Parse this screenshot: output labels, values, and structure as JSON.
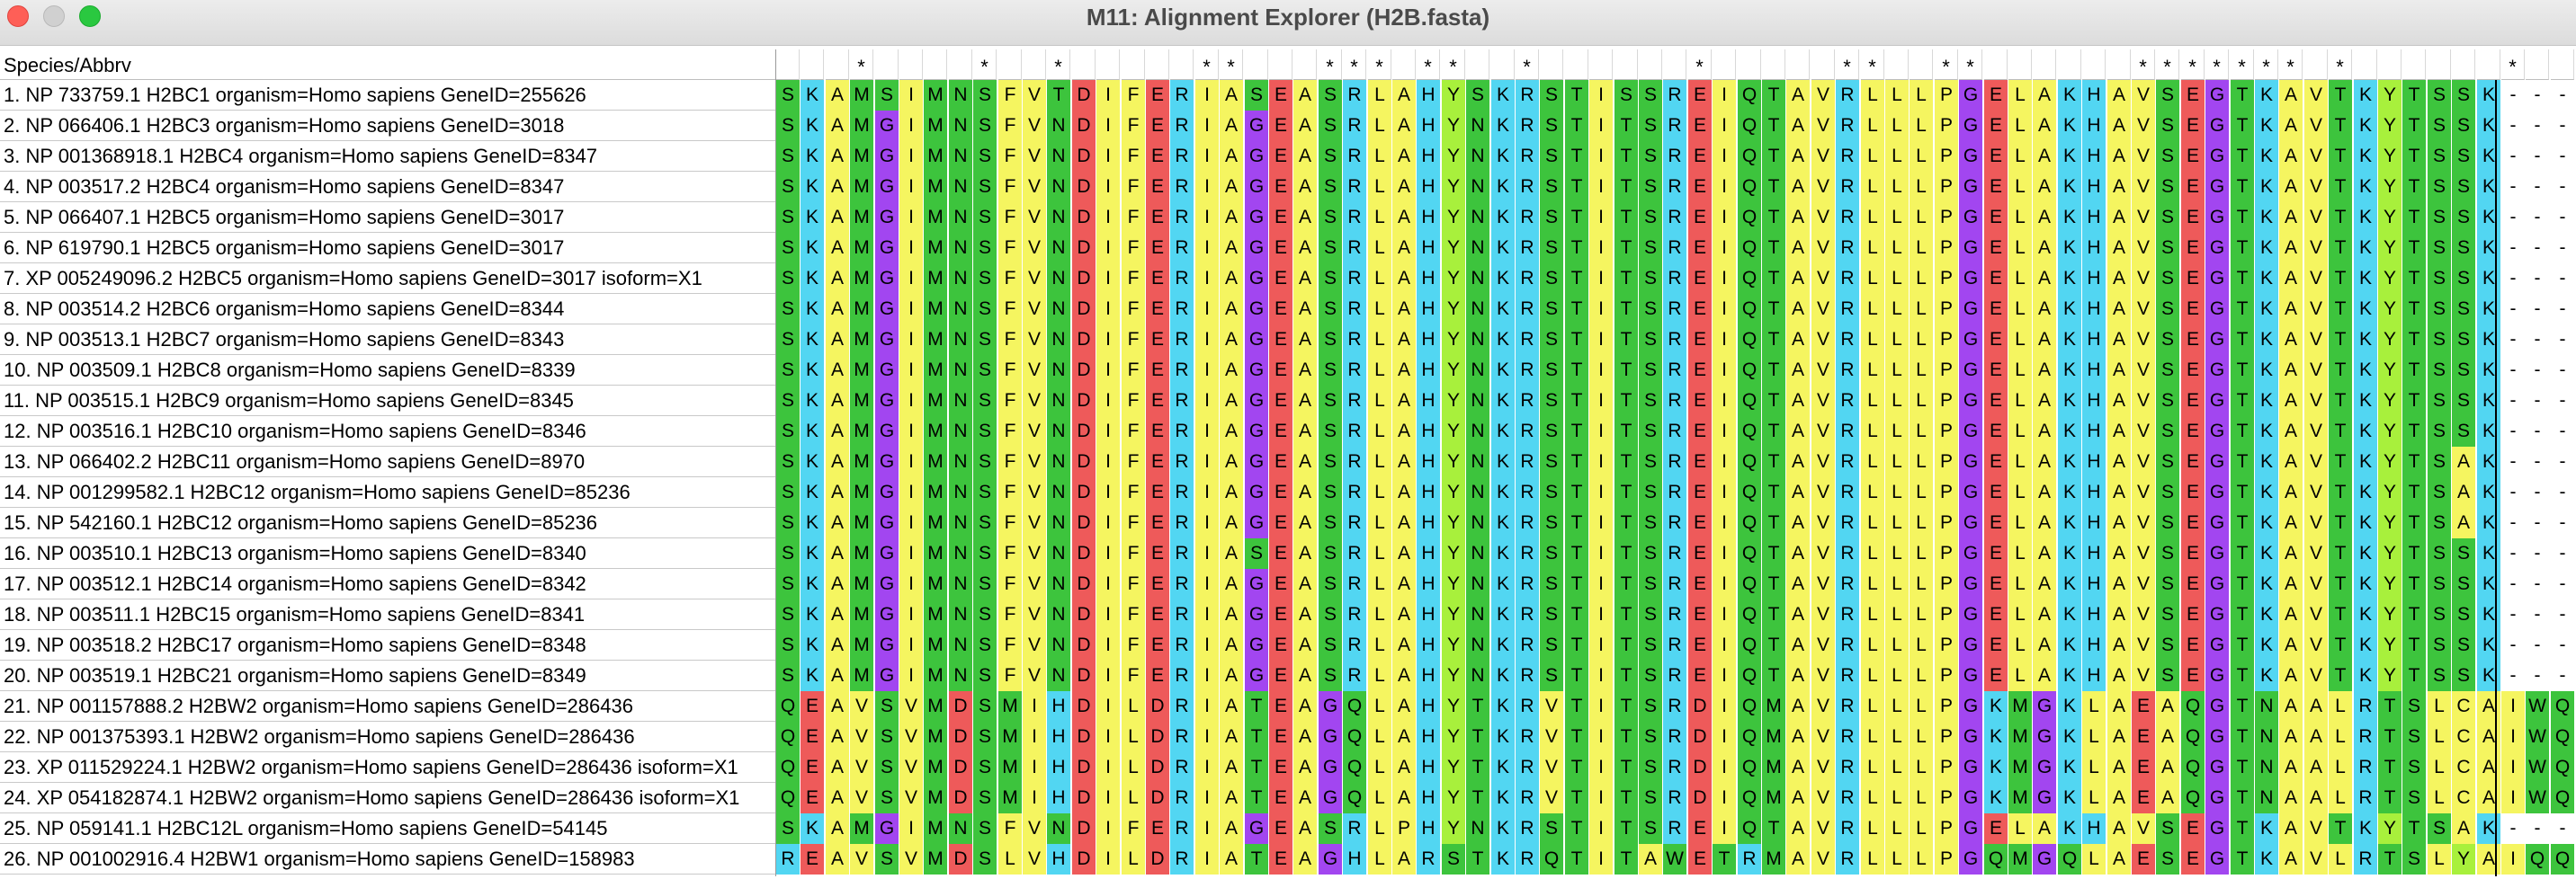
{
  "window": {
    "title": "M11: Alignment Explorer (H2B.fasta)"
  },
  "grid": {
    "header_label": "Species/Abbrv"
  },
  "colors": {
    "G": "#a246f0",
    "A": "#f5f560",
    "V": "#f5f560",
    "L": "#f5f560",
    "I": "#f5f560",
    "P": "#f5f560",
    "M": "#3dc43d",
    "F": "#f5f560",
    "W": "#3dc43d",
    "C": "#f5f560",
    "S": "#3dc43d",
    "T": "#3dc43d",
    "Y": "#a8f03c",
    "N": "#3dc43d",
    "Q": "#3dc43d",
    "D": "#ee5a5a",
    "E": "#ee5a5a",
    "K": "#52d6f2",
    "R": "#52d6f2",
    "H": "#52d6f2",
    "-": "#ffffff"
  },
  "conservation": "   *    *  *     **   *** **  *      *     **  **      ******* *      *  *   **  *                  *",
  "sequences": [
    {
      "name": "1. NP 733759.1 H2BC1 organism=Homo sapiens GeneID=255626",
      "seq": "SKAMSIMNSFVTDIFERIASEASRLAHYSKRSTISSREIQTAVRLLLPGELAKHAVSEGTKAVTKYTSSK---"
    },
    {
      "name": "2. NP 066406.1 H2BC3 organism=Homo sapiens GeneID=3018",
      "seq": "SKAMGIMNSFVNDIFERIAGEASRLAHYNKRSTITSREIQTAVRLLLPGELAKHAVSEGTKAVTKYTSSK---"
    },
    {
      "name": "3. NP 001368918.1 H2BC4 organism=Homo sapiens GeneID=8347",
      "seq": "SKAMGIMNSFVNDIFERIAGEASRLAHYNKRSTITSREIQTAVRLLLPGELAKHAVSEGTKAVTKYTSSK---"
    },
    {
      "name": "4. NP 003517.2 H2BC4 organism=Homo sapiens GeneID=8347",
      "seq": "SKAMGIMNSFVNDIFERIAGEASRLAHYNKRSTITSREIQTAVRLLLPGELAKHAVSEGTKAVTKYTSSK---"
    },
    {
      "name": "5. NP 066407.1 H2BC5 organism=Homo sapiens GeneID=3017",
      "seq": "SKAMGIMNSFVNDIFERIAGEASRLAHYNKRSTITSREIQTAVRLLLPGELAKHAVSEGTKAVTKYTSSK---"
    },
    {
      "name": "6. NP 619790.1 H2BC5 organism=Homo sapiens GeneID=3017",
      "seq": "SKAMGIMNSFVNDIFERIAGEASRLAHYNKRSTITSREIQTAVRLLLPGELAKHAVSEGTKAVTKYTSSK---"
    },
    {
      "name": "7. XP 005249096.2 H2BC5 organism=Homo sapiens GeneID=3017 isoform=X1",
      "seq": "SKAMGIMNSFVNDIFERIAGEASRLAHYNKRSTITSREIQTAVRLLLPGELAKHAVSEGTKAVTKYTSSK---"
    },
    {
      "name": "8. NP 003514.2 H2BC6 organism=Homo sapiens GeneID=8344",
      "seq": "SKAMGIMNSFVNDIFERIAGEASRLAHYNKRSTITSREIQTAVRLLLPGELAKHAVSEGTKAVTKYTSSK---"
    },
    {
      "name": "9. NP 003513.1 H2BC7 organism=Homo sapiens GeneID=8343",
      "seq": "SKAMGIMNSFVNDIFERIAGEASRLAHYNKRSTITSREIQTAVRLLLPGELAKHAVSEGTKAVTKYTSSK---"
    },
    {
      "name": "10. NP 003509.1 H2BC8 organism=Homo sapiens GeneID=8339",
      "seq": "SKAMGIMNSFVNDIFERIAGEASRLAHYNKRSTITSREIQTAVRLLLPGELAKHAVSEGTKAVTKYTSSK---"
    },
    {
      "name": "11. NP 003515.1 H2BC9 organism=Homo sapiens GeneID=8345",
      "seq": "SKAMGIMNSFVNDIFERIAGEASRLAHYNKRSTITSREIQTAVRLLLPGELAKHAVSEGTKAVTKYTSSK---"
    },
    {
      "name": "12. NP 003516.1 H2BC10 organism=Homo sapiens GeneID=8346",
      "seq": "SKAMGIMNSFVNDIFERIAGEASRLAHYNKRSTITSREIQTAVRLLLPGELAKHAVSEGTKAVTKYTSSK---"
    },
    {
      "name": "13. NP 066402.2 H2BC11 organism=Homo sapiens GeneID=8970",
      "seq": "SKAMGIMNSFVNDIFERIAGEASRLAHYNKRSTITSREIQTAVRLLLPGELAKHAVSEGTKAVTKYTSAK---"
    },
    {
      "name": "14. NP 001299582.1 H2BC12 organism=Homo sapiens GeneID=85236",
      "seq": "SKAMGIMNSFVNDIFERIAGEASRLAHYNKRSTITSREIQTAVRLLLPGELAKHAVSEGTKAVTKYTSAK---"
    },
    {
      "name": "15. NP 542160.1 H2BC12 organism=Homo sapiens GeneID=85236",
      "seq": "SKAMGIMNSFVNDIFERIAGEASRLAHYNKRSTITSREIQTAVRLLLPGELAKHAVSEGTKAVTKYTSAK---"
    },
    {
      "name": "16. NP 003510.1 H2BC13 organism=Homo sapiens GeneID=8340",
      "seq": "SKAMGIMNSFVNDIFERIASEASRLAHYNKRSTITSREIQTAVRLLLPGELAKHAVSEGTKAVTKYTSSK---"
    },
    {
      "name": "17. NP 003512.1 H2BC14 organism=Homo sapiens GeneID=8342",
      "seq": "SKAMGIMNSFVNDIFERIAGEASRLAHYNKRSTITSREIQTAVRLLLPGELAKHAVSEGTKAVTKYTSSK---"
    },
    {
      "name": "18. NP 003511.1 H2BC15 organism=Homo sapiens GeneID=8341",
      "seq": "SKAMGIMNSFVNDIFERIAGEASRLAHYNKRSTITSREIQTAVRLLLPGELAKHAVSEGTKAVTKYTSSK---"
    },
    {
      "name": "19. NP 003518.2 H2BC17 organism=Homo sapiens GeneID=8348",
      "seq": "SKAMGIMNSFVNDIFERIAGEASRLAHYNKRSTITSREIQTAVRLLLPGELAKHAVSEGTKAVTKYTSSK---"
    },
    {
      "name": "20. NP 003519.1 H2BC21 organism=Homo sapiens GeneID=8349",
      "seq": "SKAMGIMNSFVNDIFERIAGEASRLAHYNKRSTITSREIQTAVRLLLPGELAKHAVSEGTKAVTKYTSSK---"
    },
    {
      "name": "21. NP 001157888.2 H2BW2 organism=Homo sapiens GeneID=286436",
      "seq": "QEAVSVMDSMIHDILDRIATEAGQLAHYTKRVTITSRDIQMAVRLLLPGKMGKLAEAQGTNAALRTSLCAIWQQRK"
    },
    {
      "name": "22. NP 001375393.1 H2BW2 organism=Homo sapiens GeneID=286436",
      "seq": "QEAVSVMDSMIHDILDRIATEAGQLAHYTKRVTITSRDIQMAVRLLLPGKMGKLAEAQGTNAALRTSLCAIWQQRK"
    },
    {
      "name": "23. XP 011529224.1 H2BW2 organism=Homo sapiens GeneID=286436 isoform=X1",
      "seq": "QEAVSVMDSMIHDILDRIATEAGQLAHYTKRVTITSRDIQMAVRLLLPGKMGKLAEAQGTNAALRTSLCAIWQQRK"
    },
    {
      "name": "24. XP 054182874.1 H2BW2 organism=Homo sapiens GeneID=286436 isoform=X1",
      "seq": "QEAVSVMDSMIHDILDRIATEAGQLAHYTKRVTITSRDIQMAVRLLLPGKMGKLAEAQGTNAALRTSLCAIWQQRK"
    },
    {
      "name": "25. NP 059141.1 H2BC12L organism=Homo sapiens GeneID=54145",
      "seq": "SKAMGIMNSFVNDIFERIAGEASRLPHYNKRSTITSREIQTAVRLLLPGELAKHAVSEGTKAVTKYTSAK---"
    },
    {
      "name": "26. NP 001002916.4 H2BW1 organism=Homo sapiens GeneID=158983",
      "seq": "REAVSVMDSLVHDILDRIATEAGHLARSTKRQTITAWETRMAVRLLLPGQMGQLAESEGTKAVLRTSLYAIQQQRK"
    }
  ]
}
